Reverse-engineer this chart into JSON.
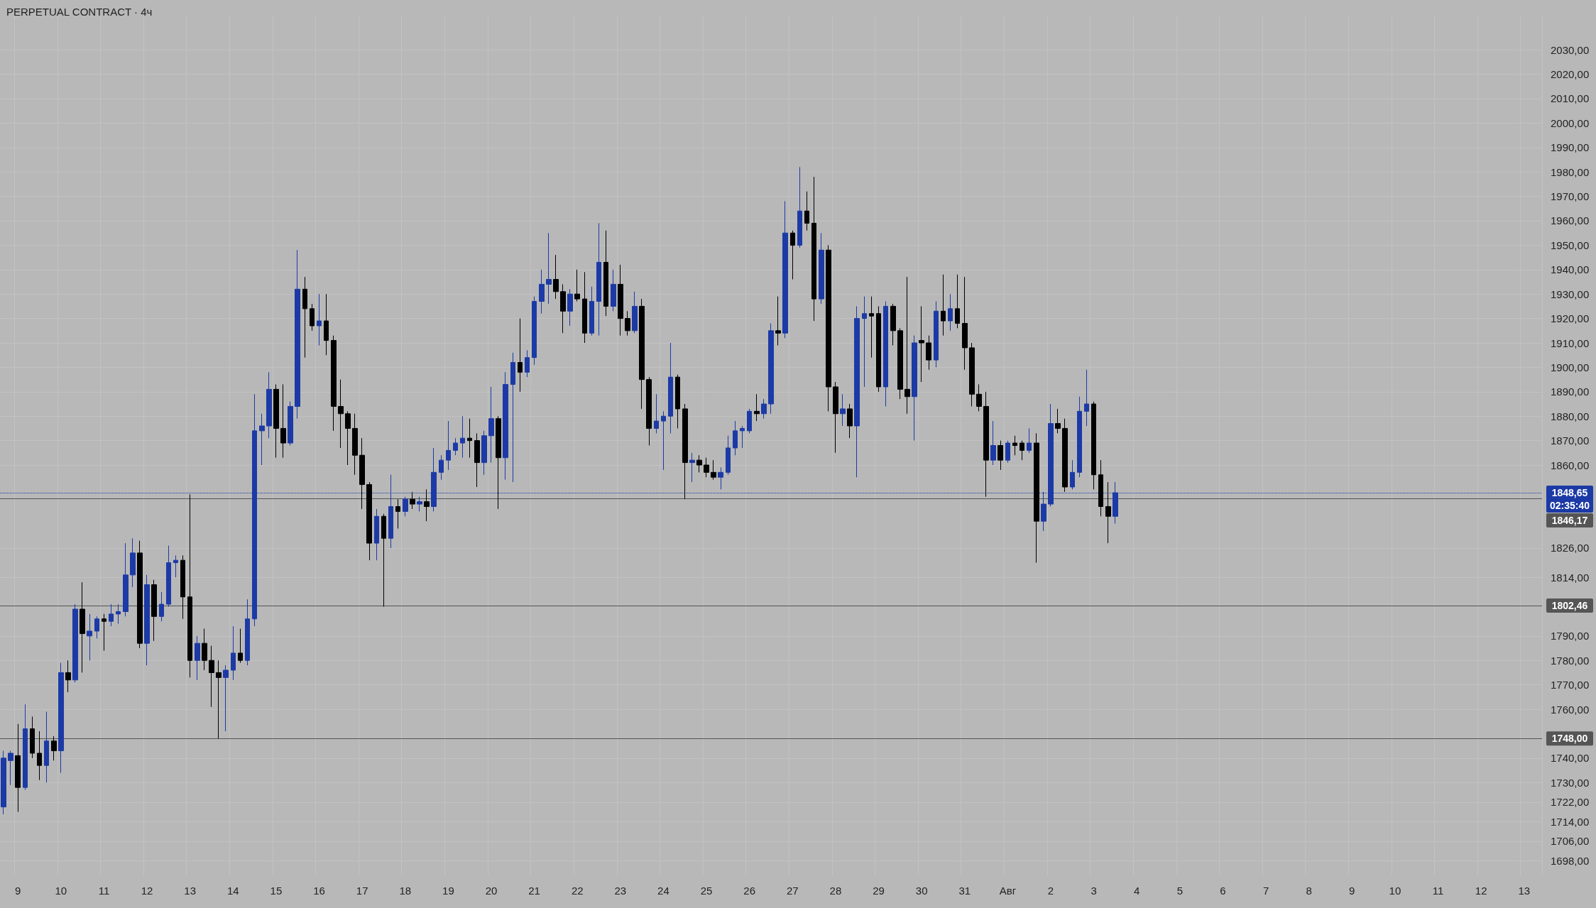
{
  "chart_data": {
    "type": "candlestick",
    "title": "PERPETUAL CONTRACT · 4ч",
    "categories": [
      null,
      null,
      "9",
      null,
      null,
      null,
      null,
      null,
      "10",
      null,
      null,
      null,
      null,
      null,
      "11",
      null,
      null,
      null,
      null,
      null,
      "12",
      null,
      null,
      null,
      null,
      null,
      "13",
      null,
      null,
      null,
      null,
      null,
      "14",
      null,
      null,
      null,
      null,
      null,
      "15",
      null,
      null,
      null,
      null,
      null,
      "16",
      null,
      null,
      null,
      null,
      null,
      "17",
      null,
      null,
      null,
      null,
      null,
      "18",
      null,
      null,
      null,
      null,
      null,
      "19",
      null,
      null,
      null,
      null,
      null,
      "20",
      null,
      null,
      null,
      null,
      null,
      "21",
      null,
      null,
      null,
      null,
      null,
      "22",
      null,
      null,
      null,
      null,
      null,
      "23",
      null,
      null,
      null,
      null,
      null,
      "24",
      null,
      null,
      null,
      null,
      null,
      "25",
      null,
      null,
      null,
      null,
      null,
      "26",
      null,
      null,
      null,
      null,
      null,
      "27",
      null,
      null,
      null,
      null,
      null,
      "28",
      null,
      null,
      null,
      null,
      null,
      "29",
      null,
      null,
      null,
      null,
      null,
      "30",
      null,
      null,
      null,
      null,
      null,
      "31",
      null,
      null,
      null,
      null,
      null,
      "Авг",
      null,
      null,
      null,
      null,
      null,
      "2",
      null,
      null,
      null,
      null,
      null,
      "3",
      null,
      null,
      null,
      null,
      null,
      "4",
      null,
      null,
      null,
      null,
      null,
      "5",
      null,
      null,
      null,
      null,
      null,
      "6",
      null,
      null,
      null,
      null,
      null,
      "7",
      null,
      null,
      null,
      null,
      null,
      "8",
      null,
      null,
      null,
      null,
      null,
      "9",
      null,
      null,
      null,
      null,
      null,
      "10",
      null,
      null,
      null,
      null,
      null,
      "11",
      null,
      null,
      null,
      null,
      null,
      "12",
      null,
      null,
      null,
      null,
      null,
      "13",
      null,
      null
    ],
    "ohlc": [
      [
        1720,
        1743,
        1717,
        1740
      ],
      [
        1739,
        1743,
        1729,
        1742
      ],
      [
        1741,
        1754,
        1718,
        1728
      ],
      [
        1728,
        1762,
        1727,
        1752
      ],
      [
        1752,
        1757,
        1740,
        1742
      ],
      [
        1742,
        1751,
        1731,
        1737
      ],
      [
        1737,
        1759,
        1730,
        1747
      ],
      [
        1747,
        1749,
        1739,
        1743
      ],
      [
        1743,
        1779,
        1734,
        1775
      ],
      [
        1775,
        1780,
        1767,
        1772
      ],
      [
        1772,
        1803,
        1771,
        1801
      ],
      [
        1801,
        1812,
        1775,
        1791
      ],
      [
        1790,
        1799,
        1780,
        1792
      ],
      [
        1792,
        1798,
        1789,
        1797
      ],
      [
        1797,
        1799,
        1784,
        1796
      ],
      [
        1796,
        1803,
        1794,
        1799
      ],
      [
        1799,
        1803,
        1795,
        1800
      ],
      [
        1800,
        1828,
        1798,
        1815
      ],
      [
        1815,
        1830,
        1810,
        1824
      ],
      [
        1824,
        1829,
        1785,
        1787
      ],
      [
        1787,
        1815,
        1778,
        1811
      ],
      [
        1811,
        1813,
        1788,
        1798
      ],
      [
        1798,
        1808,
        1796,
        1803
      ],
      [
        1803,
        1827,
        1802,
        1820
      ],
      [
        1820,
        1823,
        1814,
        1821
      ],
      [
        1821,
        1823,
        1797,
        1806
      ],
      [
        1806,
        1848,
        1773,
        1780
      ],
      [
        1780,
        1790,
        1772,
        1787
      ],
      [
        1787,
        1793,
        1776,
        1780
      ],
      [
        1780,
        1786,
        1761,
        1775
      ],
      [
        1775,
        1780,
        1748,
        1773
      ],
      [
        1773,
        1778,
        1751,
        1776
      ],
      [
        1776,
        1794,
        1772,
        1783
      ],
      [
        1783,
        1793,
        1779,
        1780
      ],
      [
        1780,
        1805,
        1778,
        1797
      ],
      [
        1797,
        1889,
        1794,
        1874
      ],
      [
        1874,
        1881,
        1860,
        1876
      ],
      [
        1876,
        1898,
        1871,
        1891
      ],
      [
        1891,
        1893,
        1863,
        1875
      ],
      [
        1875,
        1893,
        1863,
        1869
      ],
      [
        1869,
        1886,
        1868,
        1884
      ],
      [
        1884,
        1948,
        1879,
        1932
      ],
      [
        1932,
        1937,
        1904,
        1924
      ],
      [
        1924,
        1926,
        1915,
        1917
      ],
      [
        1917,
        1930,
        1909,
        1919
      ],
      [
        1919,
        1930,
        1905,
        1911
      ],
      [
        1911,
        1913,
        1874,
        1884
      ],
      [
        1884,
        1895,
        1867,
        1881
      ],
      [
        1881,
        1882,
        1860,
        1875
      ],
      [
        1875,
        1881,
        1856,
        1864
      ],
      [
        1864,
        1871,
        1842,
        1852
      ],
      [
        1852,
        1853,
        1821,
        1828
      ],
      [
        1828,
        1842,
        1821,
        1839
      ],
      [
        1839,
        1840,
        1802,
        1830
      ],
      [
        1830,
        1856,
        1826,
        1843
      ],
      [
        1843,
        1846,
        1834,
        1841
      ],
      [
        1841,
        1847,
        1839,
        1846
      ],
      [
        1846,
        1849,
        1842,
        1844
      ],
      [
        1844,
        1847,
        1841,
        1845
      ],
      [
        1845,
        1850,
        1837,
        1843
      ],
      [
        1843,
        1867,
        1841,
        1857
      ],
      [
        1857,
        1864,
        1854,
        1862
      ],
      [
        1862,
        1878,
        1858,
        1866
      ],
      [
        1866,
        1871,
        1864,
        1869
      ],
      [
        1869,
        1880,
        1863,
        1871
      ],
      [
        1871,
        1879,
        1863,
        1870
      ],
      [
        1870,
        1873,
        1851,
        1861
      ],
      [
        1861,
        1874,
        1856,
        1872
      ],
      [
        1872,
        1892,
        1861,
        1879
      ],
      [
        1879,
        1880,
        1842,
        1863
      ],
      [
        1863,
        1898,
        1854,
        1893
      ],
      [
        1893,
        1906,
        1853,
        1902
      ],
      [
        1902,
        1920,
        1890,
        1898
      ],
      [
        1898,
        1907,
        1896,
        1904
      ],
      [
        1904,
        1929,
        1901,
        1927
      ],
      [
        1927,
        1940,
        1922,
        1934
      ],
      [
        1934,
        1955,
        1926,
        1936
      ],
      [
        1936,
        1946,
        1928,
        1931
      ],
      [
        1931,
        1934,
        1914,
        1923
      ],
      [
        1923,
        1932,
        1917,
        1930
      ],
      [
        1930,
        1940,
        1927,
        1928
      ],
      [
        1928,
        1939,
        1910,
        1914
      ],
      [
        1914,
        1933,
        1913,
        1927
      ],
      [
        1927,
        1959,
        1913,
        1943
      ],
      [
        1943,
        1956,
        1921,
        1925
      ],
      [
        1925,
        1940,
        1923,
        1934
      ],
      [
        1934,
        1942,
        1913,
        1920
      ],
      [
        1920,
        1923,
        1913,
        1915
      ],
      [
        1915,
        1931,
        1914,
        1925
      ],
      [
        1925,
        1928,
        1883,
        1895
      ],
      [
        1895,
        1896,
        1868,
        1875
      ],
      [
        1875,
        1889,
        1873,
        1878
      ],
      [
        1878,
        1882,
        1858,
        1880
      ],
      [
        1880,
        1910,
        1873,
        1896
      ],
      [
        1896,
        1897,
        1875,
        1883
      ],
      [
        1883,
        1885,
        1846,
        1861
      ],
      [
        1861,
        1865,
        1853,
        1862
      ],
      [
        1862,
        1864,
        1857,
        1860
      ],
      [
        1860,
        1863,
        1855,
        1857
      ],
      [
        1857,
        1862,
        1854,
        1855
      ],
      [
        1855,
        1859,
        1850,
        1857
      ],
      [
        1857,
        1872,
        1856,
        1867
      ],
      [
        1867,
        1878,
        1864,
        1874
      ],
      [
        1874,
        1876,
        1867,
        1875
      ],
      [
        1874,
        1883,
        1873,
        1882
      ],
      [
        1882,
        1889,
        1878,
        1881
      ],
      [
        1881,
        1887,
        1879,
        1885
      ],
      [
        1885,
        1918,
        1881,
        1915
      ],
      [
        1915,
        1929,
        1909,
        1914
      ],
      [
        1914,
        1968,
        1912,
        1955
      ],
      [
        1955,
        1956,
        1936,
        1950
      ],
      [
        1950,
        1982,
        1949,
        1964
      ],
      [
        1964,
        1972,
        1956,
        1959
      ],
      [
        1959,
        1978,
        1919,
        1928
      ],
      [
        1928,
        1955,
        1926,
        1948
      ],
      [
        1948,
        1950,
        1882,
        1892
      ],
      [
        1892,
        1894,
        1865,
        1881
      ],
      [
        1881,
        1889,
        1876,
        1883
      ],
      [
        1883,
        1885,
        1871,
        1876
      ],
      [
        1876,
        1925,
        1855,
        1920
      ],
      [
        1920,
        1929,
        1892,
        1922
      ],
      [
        1922,
        1929,
        1904,
        1921
      ],
      [
        1922,
        1925,
        1890,
        1892
      ],
      [
        1892,
        1927,
        1884,
        1925
      ],
      [
        1925,
        1926,
        1909,
        1915
      ],
      [
        1915,
        1916,
        1887,
        1891
      ],
      [
        1891,
        1937,
        1881,
        1888
      ],
      [
        1888,
        1913,
        1870,
        1910
      ],
      [
        1911,
        1925,
        1894,
        1910
      ],
      [
        1910,
        1913,
        1899,
        1903
      ],
      [
        1903,
        1927,
        1900,
        1923
      ],
      [
        1923,
        1938,
        1913,
        1919
      ],
      [
        1919,
        1930,
        1915,
        1924
      ],
      [
        1924,
        1938,
        1916,
        1918
      ],
      [
        1918,
        1937,
        1899,
        1908
      ],
      [
        1908,
        1910,
        1884,
        1889
      ],
      [
        1889,
        1893,
        1882,
        1884
      ],
      [
        1884,
        1890,
        1847,
        1862
      ],
      [
        1862,
        1878,
        1860,
        1868
      ],
      [
        1868,
        1870,
        1858,
        1862
      ],
      [
        1862,
        1870,
        1861,
        1869
      ],
      [
        1869,
        1872,
        1864,
        1868
      ],
      [
        1869,
        1870,
        1862,
        1866
      ],
      [
        1866,
        1875,
        1865,
        1869
      ],
      [
        1869,
        1873,
        1820,
        1837
      ],
      [
        1837,
        1849,
        1833,
        1844
      ],
      [
        1844,
        1885,
        1843,
        1877
      ],
      [
        1877,
        1883,
        1873,
        1875
      ],
      [
        1875,
        1879,
        1849,
        1851
      ],
      [
        1851,
        1862,
        1850,
        1857
      ],
      [
        1857,
        1888,
        1855,
        1882
      ],
      [
        1882,
        1899,
        1876,
        1885
      ],
      [
        1885,
        1886,
        1850,
        1856
      ],
      [
        1856,
        1862,
        1839,
        1843
      ],
      [
        1843,
        1853,
        1828,
        1839
      ],
      [
        1839,
        1853,
        1836,
        1848.65
      ],
      null,
      null,
      null,
      null,
      null,
      null,
      null,
      null,
      null,
      null,
      null,
      null,
      null,
      null,
      null,
      null,
      null,
      null,
      null,
      null,
      null,
      null,
      null,
      null,
      null,
      null,
      null,
      null,
      null,
      null,
      null,
      null,
      null,
      null,
      null,
      null,
      null,
      null,
      null,
      null,
      null,
      null,
      null,
      null,
      null,
      null,
      null,
      null,
      null,
      null,
      null,
      null,
      null,
      null,
      null,
      null,
      null,
      null,
      null
    ],
    "colors": [
      "#1c3aa6",
      "#1c3aa6",
      "#000000",
      "#1c3aa6",
      "#000000",
      "#000000",
      "#1c3aa6",
      "#000000",
      "#1c3aa6",
      "#000000",
      "#1c3aa6",
      "#000000",
      "#1c3aa6",
      "#1c3aa6",
      "#000000",
      "#1c3aa6",
      "#1c3aa6",
      "#1c3aa6",
      "#1c3aa6",
      "#000000",
      "#1c3aa6",
      "#000000",
      "#1c3aa6",
      "#1c3aa6",
      "#1c3aa6",
      "#000000",
      "#000000",
      "#1c3aa6",
      "#000000",
      "#000000",
      "#000000",
      "#1c3aa6",
      "#1c3aa6",
      "#000000",
      "#1c3aa6",
      "#1c3aa6",
      "#1c3aa6",
      "#1c3aa6",
      "#000000",
      "#000000",
      "#1c3aa6",
      "#1c3aa6",
      "#000000",
      "#000000",
      "#1c3aa6",
      "#000000",
      "#000000",
      "#000000",
      "#000000",
      "#000000",
      "#000000",
      "#000000",
      "#1c3aa6",
      "#000000",
      "#1c3aa6",
      "#000000",
      "#1c3aa6",
      "#000000",
      "#1c3aa6",
      "#000000",
      "#1c3aa6",
      "#1c3aa6",
      "#1c3aa6",
      "#1c3aa6",
      "#1c3aa6",
      "#000000",
      "#000000",
      "#1c3aa6",
      "#1c3aa6",
      "#000000",
      "#1c3aa6",
      "#1c3aa6",
      "#000000",
      "#1c3aa6",
      "#1c3aa6",
      "#1c3aa6",
      "#1c3aa6",
      "#000000",
      "#000000",
      "#1c3aa6",
      "#000000",
      "#000000",
      "#1c3aa6",
      "#1c3aa6",
      "#000000",
      "#1c3aa6",
      "#000000",
      "#000000",
      "#1c3aa6",
      "#000000",
      "#000000",
      "#1c3aa6",
      "#1c3aa6",
      "#1c3aa6",
      "#000000",
      "#000000",
      "#1c3aa6",
      "#000000",
      "#000000",
      "#000000",
      "#1c3aa6",
      "#1c3aa6",
      "#1c3aa6",
      "#1c3aa6",
      "#1c3aa6",
      "#000000",
      "#1c3aa6",
      "#1c3aa6",
      "#000000",
      "#1c3aa6",
      "#000000",
      "#1c3aa6",
      "#000000",
      "#000000",
      "#1c3aa6",
      "#000000",
      "#000000",
      "#1c3aa6",
      "#000000",
      "#1c3aa6",
      "#1c3aa6",
      "#000000",
      "#000000",
      "#1c3aa6",
      "#000000",
      "#000000",
      "#000000",
      "#1c3aa6",
      "#000000",
      "#000000",
      "#1c3aa6",
      "#000000",
      "#1c3aa6",
      "#000000",
      "#000000",
      "#000000",
      "#000000",
      "#000000",
      "#1c3aa6",
      "#000000",
      "#1c3aa6",
      "#000000",
      "#000000",
      "#1c3aa6",
      "#000000",
      "#1c3aa6",
      "#1c3aa6",
      "#000000",
      "#000000",
      "#1c3aa6",
      "#1c3aa6",
      "#1c3aa6",
      "#000000",
      "#000000",
      "#000000",
      "#1c3aa6",
      null,
      null,
      null,
      null,
      null,
      null,
      null,
      null,
      null,
      null,
      null,
      null,
      null,
      null,
      null,
      null,
      null,
      null,
      null,
      null,
      null,
      null,
      null,
      null,
      null,
      null,
      null,
      null,
      null,
      null,
      null,
      null,
      null,
      null,
      null,
      null,
      null,
      null,
      null,
      null,
      null,
      null,
      null,
      null,
      null,
      null,
      null,
      null,
      null,
      null,
      null,
      null,
      null,
      null,
      null,
      null,
      null,
      null,
      null
    ],
    "ylim": [
      1692,
      2044
    ],
    "yticks": [
      {
        "value": 2030,
        "label": "2030,00"
      },
      {
        "value": 2020,
        "label": "2020,00"
      },
      {
        "value": 2010,
        "label": "2010,00"
      },
      {
        "value": 2000,
        "label": "2000,00"
      },
      {
        "value": 1990,
        "label": "1990,00"
      },
      {
        "value": 1980,
        "label": "1980,00"
      },
      {
        "value": 1970,
        "label": "1970,00"
      },
      {
        "value": 1960,
        "label": "1960,00"
      },
      {
        "value": 1950,
        "label": "1950,00"
      },
      {
        "value": 1940,
        "label": "1940,00"
      },
      {
        "value": 1930,
        "label": "1930,00"
      },
      {
        "value": 1920,
        "label": "1920,00"
      },
      {
        "value": 1910,
        "label": "1910,00"
      },
      {
        "value": 1900,
        "label": "1900,00"
      },
      {
        "value": 1890,
        "label": "1890,00"
      },
      {
        "value": 1880,
        "label": "1880,00"
      },
      {
        "value": 1870,
        "label": "1870,00"
      },
      {
        "value": 1860,
        "label": "1860,00"
      },
      {
        "value": 1826,
        "label": "1826,00"
      },
      {
        "value": 1814,
        "label": "1814,00"
      },
      {
        "value": 1790,
        "label": "1790,00"
      },
      {
        "value": 1780,
        "label": "1780,00"
      },
      {
        "value": 1770,
        "label": "1770,00"
      },
      {
        "value": 1760,
        "label": "1760,00"
      },
      {
        "value": 1740,
        "label": "1740,00"
      },
      {
        "value": 1730,
        "label": "1730,00"
      },
      {
        "value": 1722,
        "label": "1722,00"
      },
      {
        "value": 1714,
        "label": "1714,00"
      },
      {
        "value": 1706,
        "label": "1706,00"
      },
      {
        "value": 1698,
        "label": "1698,00"
      }
    ],
    "ref_lines": [
      {
        "axis": "y",
        "value": 1848.65,
        "label": "1848,65",
        "color": "#1c3aa6",
        "line_style": "dotted"
      },
      {
        "axis": "y",
        "value": 1846.17,
        "label": "1846,17",
        "color": "#555555",
        "line_style": "solid"
      },
      {
        "axis": "y",
        "value": 1802.46,
        "label": "1802,46",
        "color": "#555555",
        "line_style": "solid"
      },
      {
        "axis": "y",
        "value": 1748,
        "label": "1748,00",
        "color": "#555555",
        "line_style": "solid"
      }
    ],
    "annotations": [
      "02:35:40"
    ],
    "grid": true
  }
}
